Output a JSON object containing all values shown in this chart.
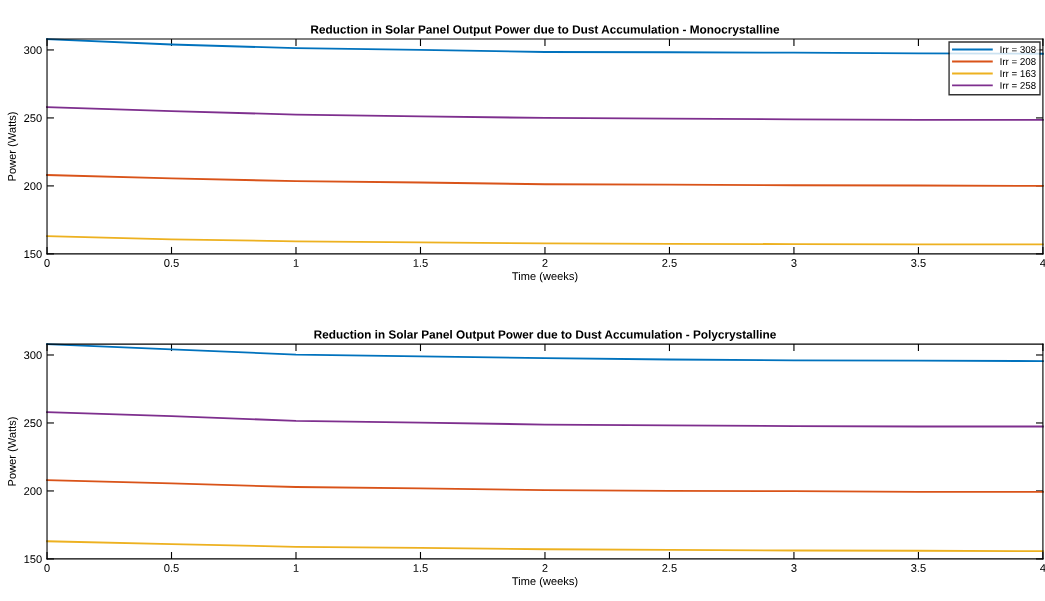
{
  "chart_data": [
    {
      "type": "line",
      "title": "Reduction in Solar Panel Output Power due to Dust Accumulation - Monocrystalline",
      "xlabel": "Time (weeks)",
      "ylabel": "Power (Watts)",
      "x": [
        0,
        0.5,
        1,
        1.5,
        2,
        2.5,
        3,
        3.5,
        4
      ],
      "series": [
        {
          "name": "Irr = 308",
          "color": "#0072bd",
          "values": [
            308,
            304,
            301.3,
            300,
            298.5,
            298.3,
            298,
            297.5,
            297.2
          ]
        },
        {
          "name": "Irr = 208",
          "color": "#d95319",
          "values": [
            208,
            205.5,
            203.5,
            202.5,
            201.2,
            201,
            200.5,
            200.3,
            200
          ]
        },
        {
          "name": "Irr = 163",
          "color": "#edb120",
          "values": [
            163,
            160.7,
            159.2,
            158.4,
            157.7,
            157.4,
            157.2,
            157,
            157
          ]
        },
        {
          "name": "Irr = 258",
          "color": "#7e2f8e",
          "values": [
            258,
            255,
            252.4,
            251.1,
            250,
            249.5,
            249,
            248.5,
            248.5
          ]
        }
      ],
      "xlim": [
        0,
        4
      ],
      "ylim": [
        150,
        308
      ],
      "xticks": [
        0,
        0.5,
        1,
        1.5,
        2,
        2.5,
        3,
        3.5,
        4
      ],
      "yticks": [
        150,
        200,
        250,
        300
      ],
      "grid": false,
      "legend": "top right"
    },
    {
      "type": "line",
      "title": "Reduction in Solar Panel Output Power due to Dust Accumulation - Polycrystalline",
      "xlabel": "Time (weeks)",
      "ylabel": "Power (Watts)",
      "x": [
        0,
        0.5,
        1,
        1.5,
        2,
        2.5,
        3,
        3.5,
        4
      ],
      "series": [
        {
          "color": "#0072bd",
          "values": [
            308,
            304.1,
            300.3,
            299,
            297.7,
            296.7,
            296,
            295.8,
            295.5
          ]
        },
        {
          "color": "#d95319",
          "values": [
            208,
            205.5,
            202.9,
            201.9,
            200.6,
            200,
            199.8,
            199.3,
            199.3
          ]
        },
        {
          "color": "#edb120",
          "values": [
            163,
            160.9,
            158.9,
            158.1,
            157.1,
            156.7,
            156.2,
            156,
            155.7
          ]
        },
        {
          "color": "#7e2f8e",
          "values": [
            258,
            255,
            251.6,
            250.3,
            248.8,
            248.2,
            247.7,
            247.4,
            247.4
          ]
        }
      ],
      "xlim": [
        0,
        4
      ],
      "ylim": [
        150,
        308
      ],
      "xticks": [
        0,
        0.5,
        1,
        1.5,
        2,
        2.5,
        3,
        3.5,
        4
      ],
      "yticks": [
        150,
        200,
        250,
        300
      ],
      "grid": false,
      "legend": false
    }
  ]
}
